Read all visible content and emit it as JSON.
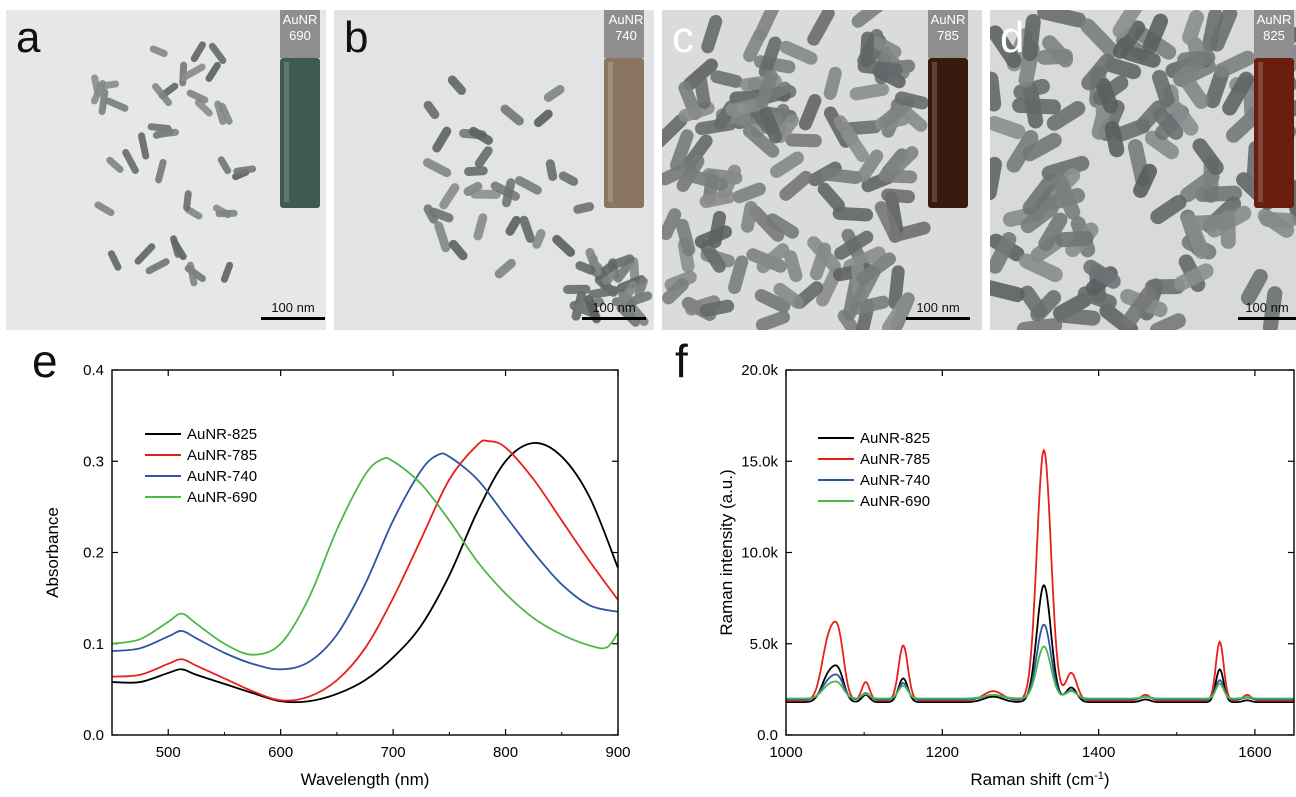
{
  "panels": [
    {
      "letter": "a",
      "vial_line1": "AuNR",
      "vial_line2": "690",
      "vial_color": "#3f5a50",
      "scale_label": "100 nm"
    },
    {
      "letter": "b",
      "vial_line1": "AuNR",
      "vial_line2": "740",
      "vial_color": "#8a7560",
      "scale_label": "100 nm"
    },
    {
      "letter": "c",
      "vial_line1": "AuNR",
      "vial_line2": "785",
      "vial_color": "#3a1a0e",
      "scale_label": "100 nm"
    },
    {
      "letter": "d",
      "vial_line1": "AuNR",
      "vial_line2": "825",
      "vial_color": "#6a1e10",
      "scale_label": "100 nm"
    }
  ],
  "chart_data": [
    {
      "panel_letter": "e",
      "type": "line",
      "xlabel": "Wavelength (nm)",
      "ylabel": "Absorbance",
      "xlim": [
        450,
        900
      ],
      "ylim": [
        0.0,
        0.4
      ],
      "xticks": [
        500,
        600,
        700,
        800,
        900
      ],
      "yticks": [
        0.0,
        0.1,
        0.2,
        0.3,
        0.4
      ],
      "xtick_labels": [
        "500",
        "600",
        "700",
        "800",
        "900"
      ],
      "ytick_labels": [
        "0.0",
        "0.1",
        "0.2",
        "0.3",
        "0.4"
      ],
      "legend_position": "top-left",
      "series": [
        {
          "name": "AuNR-825",
          "color": "#000000",
          "x": [
            450,
            475,
            500,
            512,
            525,
            550,
            575,
            600,
            625,
            650,
            675,
            700,
            725,
            750,
            775,
            800,
            825,
            850,
            875,
            900
          ],
          "y": [
            0.058,
            0.058,
            0.068,
            0.072,
            0.066,
            0.056,
            0.046,
            0.037,
            0.037,
            0.045,
            0.06,
            0.085,
            0.12,
            0.175,
            0.245,
            0.3,
            0.32,
            0.305,
            0.26,
            0.183
          ]
        },
        {
          "name": "AuNR-785",
          "color": "#e8201c",
          "x": [
            450,
            475,
            500,
            512,
            525,
            550,
            575,
            600,
            625,
            650,
            675,
            700,
            725,
            750,
            775,
            785,
            800,
            825,
            850,
            875,
            900
          ],
          "y": [
            0.064,
            0.066,
            0.078,
            0.083,
            0.076,
            0.062,
            0.048,
            0.038,
            0.042,
            0.06,
            0.095,
            0.15,
            0.215,
            0.28,
            0.318,
            0.322,
            0.315,
            0.28,
            0.235,
            0.19,
            0.148
          ]
        },
        {
          "name": "AuNR-740",
          "color": "#2e55a5",
          "x": [
            450,
            475,
            500,
            512,
            525,
            550,
            575,
            600,
            625,
            650,
            675,
            700,
            725,
            740,
            750,
            775,
            800,
            825,
            850,
            875,
            900
          ],
          "y": [
            0.092,
            0.095,
            0.108,
            0.114,
            0.106,
            0.09,
            0.078,
            0.072,
            0.08,
            0.11,
            0.165,
            0.235,
            0.29,
            0.307,
            0.305,
            0.28,
            0.24,
            0.2,
            0.165,
            0.142,
            0.135
          ]
        },
        {
          "name": "AuNR-690",
          "color": "#4cb848",
          "x": [
            450,
            475,
            500,
            512,
            525,
            550,
            575,
            600,
            625,
            650,
            675,
            690,
            700,
            725,
            750,
            775,
            800,
            825,
            850,
            875,
            890,
            900
          ],
          "y": [
            0.1,
            0.105,
            0.124,
            0.133,
            0.122,
            0.1,
            0.088,
            0.1,
            0.15,
            0.225,
            0.285,
            0.302,
            0.3,
            0.275,
            0.235,
            0.19,
            0.155,
            0.128,
            0.11,
            0.098,
            0.096,
            0.112
          ]
        }
      ]
    },
    {
      "panel_letter": "f",
      "type": "line",
      "xlabel": "Raman shift (cm",
      "xlabel_sup": "-1",
      "xlabel_end": ")",
      "ylabel": "Raman intensity (a.u.)",
      "xlim": [
        1000,
        1650
      ],
      "ylim": [
        0,
        20000
      ],
      "xticks": [
        1000,
        1200,
        1400,
        1600
      ],
      "yticks": [
        0,
        5000,
        10000,
        15000,
        20000
      ],
      "xtick_labels": [
        "1000",
        "1200",
        "1400",
        "1600"
      ],
      "ytick_labels": [
        "0.0",
        "5.0k",
        "10.0k",
        "15.0k",
        "20.0k"
      ],
      "legend_position": "top-left",
      "baselines": [
        1800,
        1900,
        1950,
        2000
      ],
      "peaks_x": [
        1055,
        1068,
        1102,
        1150,
        1265,
        1330,
        1365,
        1460,
        1555,
        1590
      ],
      "peaks_width": [
        9,
        7,
        5,
        6,
        12,
        9,
        7,
        6,
        5,
        5
      ],
      "series": [
        {
          "name": "AuNR-825",
          "color": "#000000",
          "peak_heights": [
            1500,
            1300,
            400,
            1300,
            300,
            6400,
            800,
            150,
            1800,
            100
          ]
        },
        {
          "name": "AuNR-785",
          "color": "#e8201c",
          "peak_heights": [
            3300,
            2700,
            1000,
            3000,
            500,
            13700,
            1500,
            300,
            3200,
            300
          ]
        },
        {
          "name": "AuNR-740",
          "color": "#2e55a5",
          "peak_heights": [
            1000,
            900,
            350,
            900,
            250,
            4100,
            500,
            150,
            1050,
            100
          ]
        },
        {
          "name": "AuNR-690",
          "color": "#4cb848",
          "peak_heights": [
            700,
            600,
            250,
            700,
            200,
            2850,
            400,
            100,
            800,
            80
          ]
        }
      ]
    }
  ]
}
